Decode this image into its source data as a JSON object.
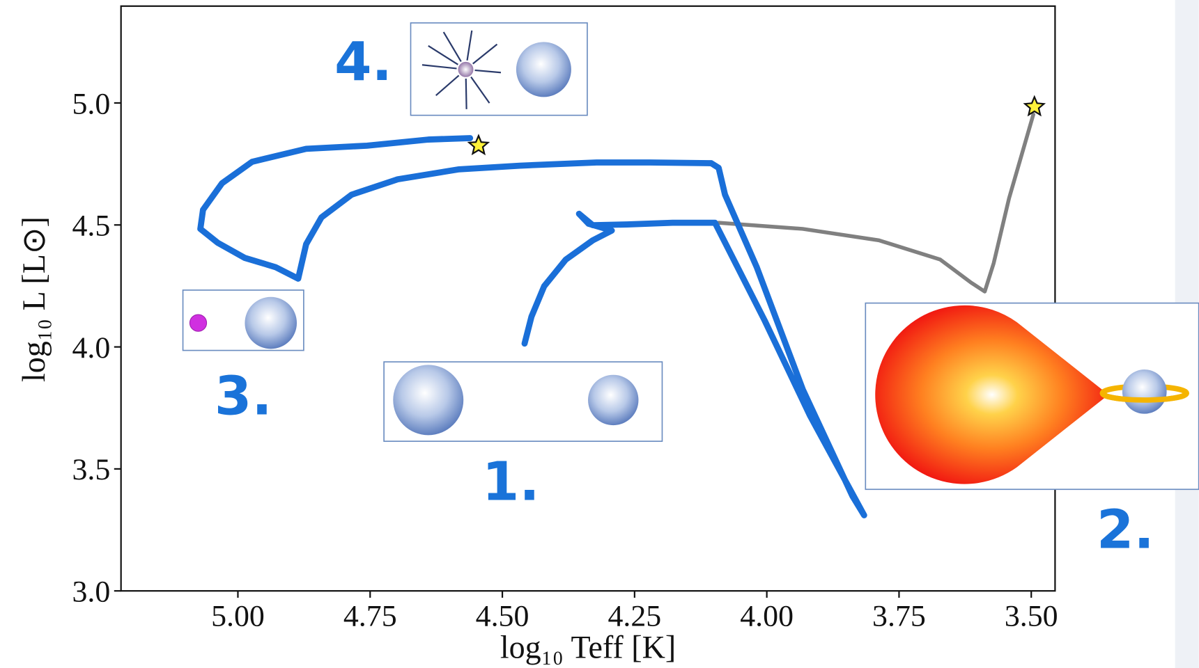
{
  "chart_data": {
    "type": "line",
    "x_label": "log₁₀ Teff [K]",
    "y_label": "log₁₀ L [L⊙]",
    "xlim": [
      5.221,
      3.455
    ],
    "ylim": [
      3.0,
      5.397
    ],
    "xticks": [
      {
        "value": 5.0,
        "label": "5.00"
      },
      4.75,
      {
        "value": 4.5,
        "label": "4.50"
      },
      4.25,
      {
        "value": 4.0,
        "label": "4.00"
      },
      3.75,
      {
        "value": 3.5,
        "label": "3.50"
      }
    ],
    "yticks": [
      {
        "value": 3.0,
        "label": "3.0"
      },
      3.5,
      {
        "value": 4.0,
        "label": "4.0"
      },
      4.5,
      {
        "value": 5.0,
        "label": "5.0"
      }
    ],
    "grid": false,
    "series": [
      {
        "color": "#1a6fd8",
        "x": [
          4.458,
          4.445,
          4.421,
          4.38,
          4.329,
          4.293,
          4.337,
          4.355,
          4.329,
          4.264,
          4.178,
          4.098,
          4.004,
          3.918,
          3.816,
          3.838,
          3.932,
          4.019,
          4.079,
          4.091,
          4.105,
          4.221,
          4.322,
          4.467,
          4.582,
          4.698,
          4.785,
          4.842,
          4.871,
          4.886,
          4.929,
          4.987,
          5.038,
          5.071,
          5.066,
          5.03,
          4.973,
          4.871,
          4.756,
          4.64,
          4.561
        ],
        "y": [
          4.014,
          4.124,
          4.249,
          4.358,
          4.437,
          4.477,
          4.505,
          4.546,
          4.499,
          4.502,
          4.509,
          4.509,
          4.108,
          3.717,
          3.31,
          3.388,
          3.826,
          4.327,
          4.624,
          4.734,
          4.753,
          4.756,
          4.756,
          4.743,
          4.728,
          4.687,
          4.624,
          4.531,
          4.421,
          4.28,
          4.327,
          4.365,
          4.427,
          4.484,
          4.562,
          4.671,
          4.759,
          4.812,
          4.825,
          4.85,
          4.856
        ]
      },
      {
        "color": "#808080",
        "x": [
          4.091,
          3.932,
          3.788,
          3.672,
          3.614,
          3.588,
          3.571,
          3.542,
          3.496
        ],
        "y": [
          4.509,
          4.484,
          4.437,
          4.358,
          4.264,
          4.227,
          4.343,
          4.609,
          4.953
        ]
      }
    ],
    "markers": {
      "x": [
        4.545,
        3.494
      ],
      "y": [
        4.825,
        4.984
      ],
      "color": "#fff23a"
    },
    "annotations": [
      "4.",
      "3.",
      "1.",
      "2."
    ]
  }
}
